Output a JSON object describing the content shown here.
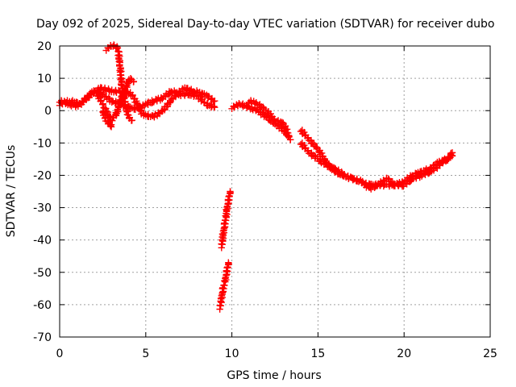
{
  "chart_data": {
    "type": "scatter",
    "title": "Day 092 of 2025, Sidereal Day-to-day VTEC variation (SDTVAR) for receiver dubo",
    "xlabel": "GPS time / hours",
    "ylabel": "SDTVAR / TECUs",
    "xlim": [
      0,
      25
    ],
    "ylim": [
      -70,
      20
    ],
    "xticks": [
      0,
      5,
      10,
      15,
      20,
      25
    ],
    "yticks": [
      -70,
      -60,
      -50,
      -40,
      -30,
      -20,
      -10,
      0,
      10,
      20
    ],
    "xtick_labels": [
      "0",
      "5",
      "10",
      "15",
      "20",
      "25"
    ],
    "ytick_labels": [
      "-70",
      "-60",
      "-50",
      "-40",
      "-30",
      "-20",
      "-10",
      "0",
      "10",
      "20"
    ],
    "grid": true,
    "marker": "plus",
    "color": "#ff0000",
    "series": [
      {
        "name": "track-main-a",
        "x": [
          0.0,
          0.5,
          1.0,
          1.5,
          2.0,
          2.5,
          3.0,
          3.5,
          4.0,
          4.5,
          5.0,
          5.5,
          6.0,
          6.5,
          7.0,
          7.5,
          8.0,
          8.5,
          9.0
        ],
        "y": [
          3,
          2,
          1.5,
          3.5,
          6,
          5,
          3,
          2,
          1,
          0.5,
          2,
          3,
          4,
          6,
          5,
          5,
          4.5,
          2,
          1
        ]
      },
      {
        "name": "track-main-b",
        "x": [
          0.0,
          0.6,
          1.2,
          1.8,
          2.4,
          3.0,
          3.6,
          4.2,
          4.8,
          5.4,
          6.0,
          6.6,
          7.2,
          7.8,
          8.4,
          9.0
        ],
        "y": [
          2,
          3,
          2,
          5,
          7,
          6,
          6,
          5,
          -1,
          -2,
          0,
          4,
          7,
          6,
          5,
          3
        ]
      },
      {
        "name": "track-spike-a",
        "x": [
          2.7,
          3.0,
          3.2,
          3.4,
          3.5,
          3.6,
          3.8,
          4.0,
          4.2
        ],
        "y": [
          19,
          20,
          20,
          19,
          14,
          8,
          2,
          -2,
          -3
        ]
      },
      {
        "name": "track-spike-b",
        "x": [
          2.2,
          2.6,
          3.0,
          3.3,
          3.6,
          3.9,
          4.1,
          4.3
        ],
        "y": [
          5,
          1,
          -3,
          -1,
          4,
          8,
          10,
          9
        ]
      },
      {
        "name": "track-drop",
        "x": [
          2.5,
          2.7,
          2.9,
          3.0
        ],
        "y": [
          0,
          -3,
          -4,
          -5
        ]
      },
      {
        "name": "track-mid-a",
        "x": [
          10.0,
          10.5,
          11.0,
          11.5,
          12.0,
          12.5,
          13.0,
          13.3
        ],
        "y": [
          1,
          2,
          1,
          0,
          -2,
          -4,
          -6,
          -8
        ]
      },
      {
        "name": "track-mid-b",
        "x": [
          11.0,
          11.5,
          12.0,
          12.5,
          13.0,
          13.4
        ],
        "y": [
          3,
          2,
          0,
          -3,
          -4,
          -9
        ]
      },
      {
        "name": "track-late-a",
        "x": [
          14.0,
          14.5,
          15.0,
          15.5,
          16.0,
          16.5,
          17.0,
          17.5,
          18.0,
          18.5,
          19.0,
          19.5,
          20.0,
          20.5,
          21.0,
          21.5,
          22.0,
          22.5,
          22.8
        ],
        "y": [
          -6,
          -9,
          -12,
          -16,
          -19,
          -20,
          -21,
          -22,
          -23,
          -23,
          -23,
          -23,
          -22,
          -20,
          -19,
          -18,
          -16,
          -15,
          -13
        ]
      },
      {
        "name": "track-late-b",
        "x": [
          14.0,
          14.5,
          15.0,
          15.5,
          16.0,
          16.5,
          17.0,
          17.5,
          18.0,
          18.5,
          19.0,
          19.5,
          20.0,
          20.5,
          21.0,
          21.5,
          22.0,
          22.5,
          22.8
        ],
        "y": [
          -10,
          -13,
          -15,
          -17,
          -18,
          -20,
          -21,
          -22,
          -24,
          -23,
          -21,
          -23,
          -23,
          -21,
          -20,
          -19,
          -17,
          -15,
          -14
        ]
      },
      {
        "name": "track-vertical-upper",
        "x": [
          9.4,
          9.5,
          9.6,
          9.7,
          9.8,
          9.9
        ],
        "y": [
          -42,
          -38,
          -35,
          -31,
          -28,
          -25
        ]
      },
      {
        "name": "track-vertical-lower",
        "x": [
          9.3,
          9.4,
          9.5,
          9.6,
          9.7,
          9.8
        ],
        "y": [
          -61,
          -58,
          -55,
          -53,
          -50,
          -47
        ]
      }
    ]
  }
}
